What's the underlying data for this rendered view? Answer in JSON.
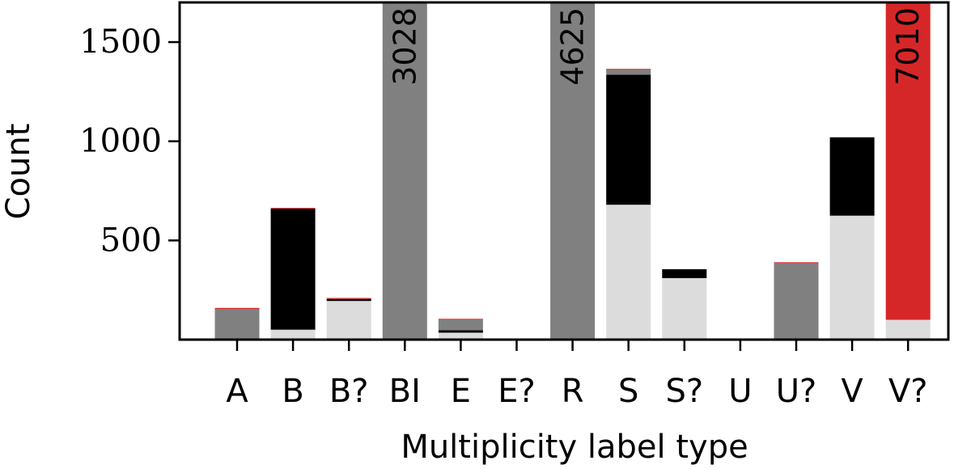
{
  "chart_data": {
    "type": "bar",
    "stacked": true,
    "title": "",
    "xlabel": "Multiplicity label type",
    "ylabel": "Count",
    "ylim": [
      0,
      1700
    ],
    "yticks": [
      500,
      1000,
      1500
    ],
    "grid": false,
    "categories": [
      "A",
      "B",
      "B?",
      "BI",
      "E",
      "E?",
      "R",
      "S",
      "S?",
      "U",
      "U?",
      "V",
      "V?"
    ],
    "bars": [
      {
        "category": "A",
        "segments": [
          {
            "color": "#808080",
            "value": 155
          },
          {
            "color": "#d62728",
            "value": 5
          }
        ]
      },
      {
        "category": "B",
        "segments": [
          {
            "color": "#dcdcdc",
            "value": 50
          },
          {
            "color": "#000000",
            "value": 610
          },
          {
            "color": "#d62728",
            "value": 4
          }
        ]
      },
      {
        "category": "B?",
        "segments": [
          {
            "color": "#dcdcdc",
            "value": 195
          },
          {
            "color": "#000000",
            "value": 10
          },
          {
            "color": "#d62728",
            "value": 5
          }
        ]
      },
      {
        "category": "BI",
        "segments": [
          {
            "color": "#808080",
            "value": 3028
          }
        ],
        "total_label": "3028"
      },
      {
        "category": "E",
        "segments": [
          {
            "color": "#dcdcdc",
            "value": 35
          },
          {
            "color": "#000000",
            "value": 12
          },
          {
            "color": "#808080",
            "value": 55
          },
          {
            "color": "#d62728",
            "value": 3
          }
        ]
      },
      {
        "category": "E?",
        "segments": []
      },
      {
        "category": "R",
        "segments": [
          {
            "color": "#808080",
            "value": 4625
          }
        ],
        "total_label": "4625"
      },
      {
        "category": "S",
        "segments": [
          {
            "color": "#dcdcdc",
            "value": 680
          },
          {
            "color": "#000000",
            "value": 655
          },
          {
            "color": "#808080",
            "value": 25
          },
          {
            "color": "#d62728",
            "value": 5
          }
        ]
      },
      {
        "category": "S?",
        "segments": [
          {
            "color": "#dcdcdc",
            "value": 310
          },
          {
            "color": "#000000",
            "value": 45
          }
        ]
      },
      {
        "category": "U",
        "segments": []
      },
      {
        "category": "U?",
        "segments": [
          {
            "color": "#808080",
            "value": 385
          },
          {
            "color": "#d62728",
            "value": 5
          }
        ]
      },
      {
        "category": "V",
        "segments": [
          {
            "color": "#dcdcdc",
            "value": 625
          },
          {
            "color": "#000000",
            "value": 395
          }
        ]
      },
      {
        "category": "V?",
        "segments": [
          {
            "color": "#dcdcdc",
            "value": 100
          },
          {
            "color": "#d62728",
            "value": 6910
          }
        ],
        "total_label": "7010"
      }
    ]
  }
}
